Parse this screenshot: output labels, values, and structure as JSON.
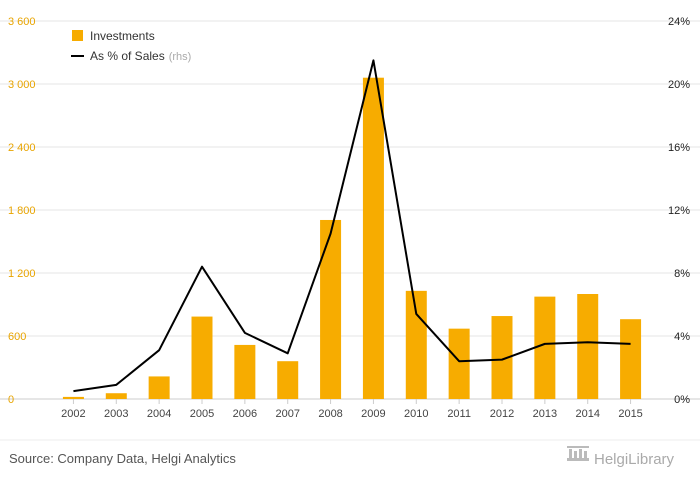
{
  "chart_data": {
    "type": "bar",
    "categories": [
      "2002",
      "2003",
      "2004",
      "2005",
      "2006",
      "2007",
      "2008",
      "2009",
      "2010",
      "2011",
      "2012",
      "2013",
      "2014",
      "2015"
    ],
    "series": [
      {
        "name": "Investments",
        "type": "bar",
        "axis": "left",
        "color": "#f7ac00",
        "values": [
          20,
          55,
          215,
          785,
          515,
          360,
          1705,
          3060,
          1030,
          670,
          790,
          975,
          1000,
          760
        ]
      },
      {
        "name": "As % of Sales",
        "name_suffix": "(rhs)",
        "type": "line",
        "axis": "right",
        "color": "#000000",
        "values": [
          0.5,
          0.9,
          3.1,
          8.4,
          4.2,
          2.9,
          10.5,
          21.5,
          5.4,
          2.4,
          2.5,
          3.5,
          3.6,
          3.5
        ]
      }
    ],
    "y_left": {
      "ylim": [
        0,
        3600
      ],
      "ticks": [
        0,
        600,
        1200,
        1800,
        2400,
        3000,
        3600
      ],
      "tick_labels": [
        "0",
        "600",
        "1 200",
        "1 800",
        "2 400",
        "3 000",
        "3 600"
      ],
      "color": "#e8a400"
    },
    "y_right": {
      "ylim": [
        0,
        24
      ],
      "ticks": [
        0,
        4,
        8,
        12,
        16,
        20,
        24
      ],
      "tick_labels": [
        "0%",
        "4%",
        "8%",
        "12%",
        "16%",
        "20%",
        "24%"
      ]
    },
    "grid": true,
    "legend_position": "top-left"
  },
  "footer": {
    "source": "Source: Company Data, Helgi Analytics",
    "brand": "HelgiLibrary"
  },
  "colors": {
    "bar": "#f7ac00",
    "line": "#000000",
    "grid": "#e6e6e6",
    "axis_left_labels": "#e8a400"
  }
}
